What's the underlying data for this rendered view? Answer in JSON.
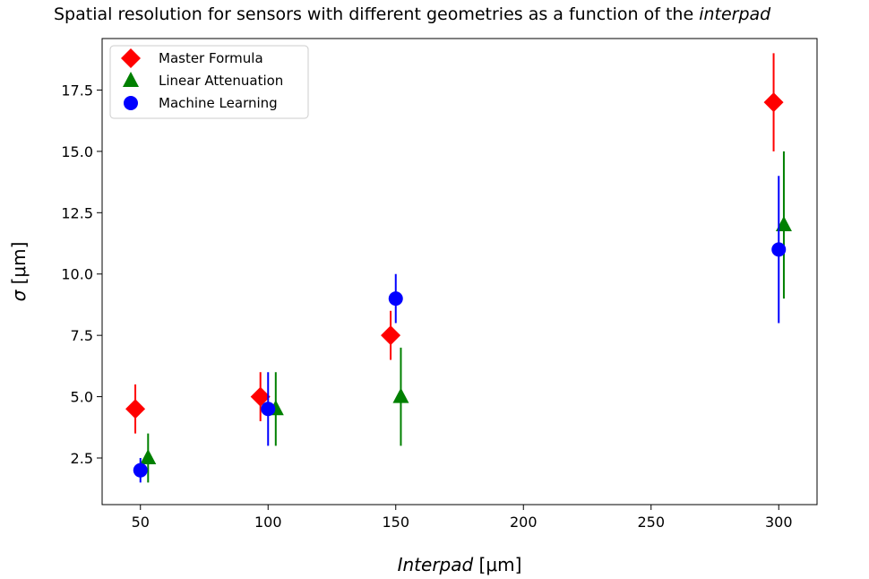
{
  "chart_data": {
    "type": "scatter",
    "title_main": "Spatial resolution for sensors with different geometries as a function of the ",
    "title_emph": "interpad",
    "xlabel_emph": "Interpad",
    "xlabel_unit": " [μm]",
    "ylabel_emph": "σ",
    "ylabel_unit": " [μm]",
    "xlim": [
      35,
      315
    ],
    "ylim": [
      0.6,
      19.6
    ],
    "xticks": [
      50,
      100,
      150,
      200,
      250,
      300
    ],
    "xtick_labels": [
      "50",
      "100",
      "150",
      "200",
      "250",
      "300"
    ],
    "yticks": [
      2.5,
      5.0,
      7.5,
      10.0,
      12.5,
      15.0,
      17.5
    ],
    "ytick_labels": [
      "2.5",
      "5.0",
      "7.5",
      "10.0",
      "12.5",
      "15.0",
      "17.5"
    ],
    "grid": false,
    "legend_position": "top-left",
    "series": [
      {
        "name": "Master Formula",
        "marker": "diamond",
        "color": "#ff0000",
        "points": [
          {
            "x": 48,
            "y": 4.5,
            "yerr": 1.0
          },
          {
            "x": 97,
            "y": 5.0,
            "yerr": 1.0
          },
          {
            "x": 148,
            "y": 7.5,
            "yerr": 1.0
          },
          {
            "x": 298,
            "y": 17.0,
            "yerr": 2.0
          }
        ]
      },
      {
        "name": "Linear Attenuation",
        "marker": "triangle",
        "color": "#008000",
        "points": [
          {
            "x": 53,
            "y": 2.5,
            "yerr": 1.0
          },
          {
            "x": 103,
            "y": 4.5,
            "yerr": 1.5
          },
          {
            "x": 152,
            "y": 5.0,
            "yerr": 2.0
          },
          {
            "x": 302,
            "y": 12.0,
            "yerr": 3.0
          }
        ]
      },
      {
        "name": "Machine Learning",
        "marker": "circle",
        "color": "#0000ff",
        "points": [
          {
            "x": 50,
            "y": 2.0,
            "yerr": 0.5
          },
          {
            "x": 100,
            "y": 4.5,
            "yerr": 1.5
          },
          {
            "x": 150,
            "y": 9.0,
            "yerr": 1.0
          },
          {
            "x": 300,
            "y": 11.0,
            "yerr": 3.0
          }
        ]
      }
    ]
  }
}
